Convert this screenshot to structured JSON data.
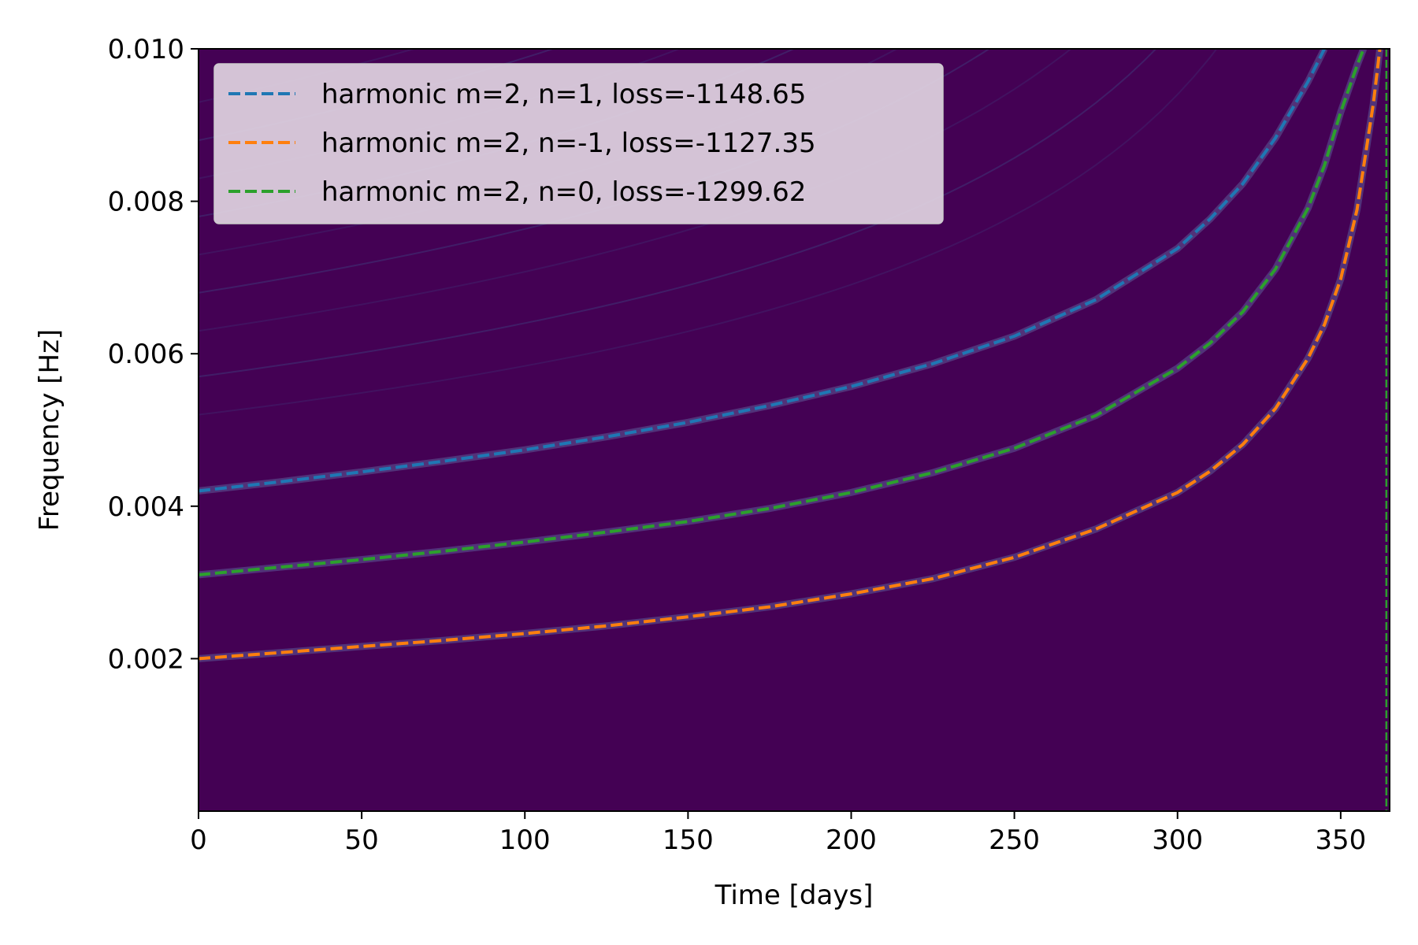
{
  "chart_data": {
    "type": "line",
    "xlabel": "Time [days]",
    "ylabel": "Frequency [Hz]",
    "xlim": [
      0,
      365
    ],
    "ylim": [
      0.0,
      0.01
    ],
    "x_ticks": [
      0,
      50,
      100,
      150,
      200,
      250,
      300,
      350
    ],
    "x_tick_labels": [
      "0",
      "50",
      "100",
      "150",
      "200",
      "250",
      "300",
      "350"
    ],
    "y_ticks": [
      0.002,
      0.004,
      0.006,
      0.008,
      0.01
    ],
    "y_tick_labels": [
      "0.002",
      "0.004",
      "0.006",
      "0.008",
      "0.010"
    ],
    "background": "spectrogram (viridis colormap, mostly dark purple with faint chirp tracks)",
    "background_color": "#440154",
    "legend_position": "upper-left",
    "grid": false,
    "series": [
      {
        "name": "harmonic m=2, n=1, loss=-1148.65",
        "color": "#1f77b4",
        "style": "dashed",
        "x": [
          0,
          25,
          50,
          75,
          100,
          125,
          150,
          175,
          200,
          225,
          250,
          275,
          300,
          310,
          320,
          330,
          340,
          345
        ],
        "y": [
          0.0042,
          0.00432,
          0.00445,
          0.00459,
          0.00474,
          0.00491,
          0.0051,
          0.00532,
          0.00557,
          0.00587,
          0.00623,
          0.00671,
          0.00738,
          0.00777,
          0.00823,
          0.00883,
          0.00957,
          0.01
        ]
      },
      {
        "name": "harmonic m=2, n=-1, loss=-1127.35",
        "color": "#ff7f0e",
        "style": "dashed",
        "x": [
          0,
          25,
          50,
          75,
          100,
          125,
          150,
          175,
          200,
          225,
          250,
          275,
          300,
          310,
          320,
          330,
          340,
          345,
          350,
          355,
          360,
          362
        ],
        "y": [
          0.002,
          0.00208,
          0.00216,
          0.00224,
          0.00233,
          0.00243,
          0.00255,
          0.00268,
          0.00285,
          0.00305,
          0.00333,
          0.0037,
          0.00418,
          0.00446,
          0.00481,
          0.00528,
          0.00594,
          0.00638,
          0.00698,
          0.00789,
          0.00928,
          0.01
        ]
      },
      {
        "name": "harmonic m=2, n=0, loss=-1299.62",
        "color": "#2ca02c",
        "style": "dashed",
        "x": [
          0,
          25,
          50,
          75,
          100,
          125,
          150,
          175,
          200,
          225,
          250,
          275,
          300,
          310,
          320,
          330,
          340,
          345,
          350,
          355,
          357
        ],
        "y": [
          0.0031,
          0.0032,
          0.0033,
          0.00341,
          0.00353,
          0.00366,
          0.0038,
          0.00397,
          0.00418,
          0.00444,
          0.00476,
          0.00519,
          0.00581,
          0.00614,
          0.00655,
          0.00711,
          0.00791,
          0.00847,
          0.00917,
          0.00978,
          0.01
        ]
      }
    ],
    "vertical_lines": [
      {
        "x": 364,
        "color": "#2ca02c",
        "style": "dashed"
      }
    ]
  }
}
